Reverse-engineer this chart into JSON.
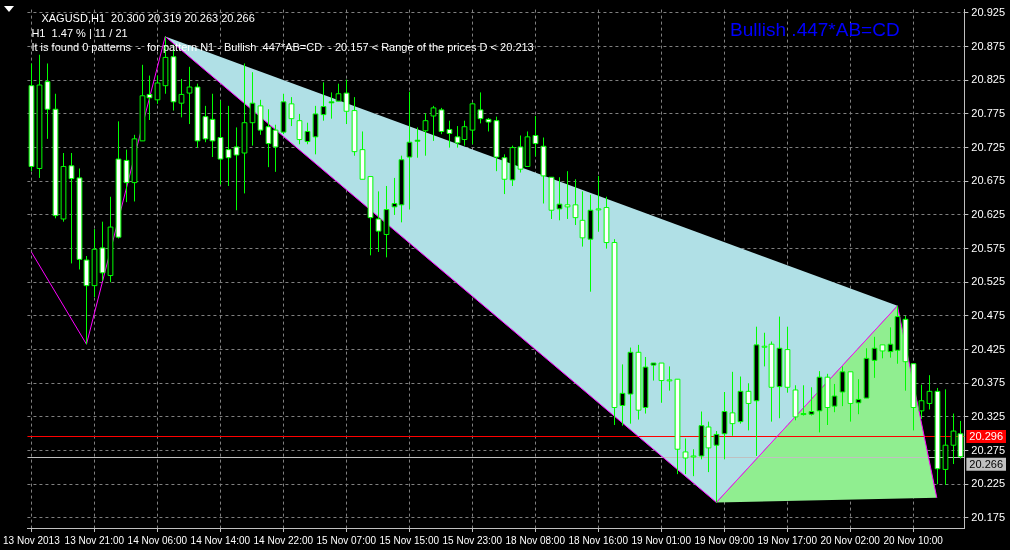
{
  "chart_data": {
    "type": "candlestick",
    "title": "XAGUSD,H1  20.300 20.319 20.263 20.266",
    "annotations": [
      "H1  1.47 % | 11 / 21",
      "It is found 0 patterns  -  for pattern N1 - Bullish .447*AB=CD  - 20.157 < Range of the prices D < 20.213",
      "Bullish .447*AB=CD"
    ],
    "categories": [
      "13 Nov 2013",
      null,
      null,
      null,
      null,
      null,
      null,
      null,
      "13 Nov 21:00",
      null,
      null,
      null,
      null,
      null,
      null,
      null,
      "14 Nov 06:00",
      null,
      null,
      null,
      null,
      null,
      null,
      null,
      "14 Nov 14:00",
      null,
      null,
      null,
      null,
      null,
      null,
      null,
      "14 Nov 22:00",
      null,
      null,
      null,
      null,
      null,
      null,
      null,
      "15 Nov 07:00",
      null,
      null,
      null,
      null,
      null,
      null,
      null,
      "15 Nov 15:00",
      null,
      null,
      null,
      null,
      null,
      null,
      null,
      "15 Nov 23:00",
      null,
      null,
      null,
      null,
      null,
      null,
      null,
      "18 Nov 08:00",
      null,
      null,
      null,
      null,
      null,
      null,
      null,
      "18 Nov 16:00",
      null,
      null,
      null,
      null,
      null,
      null,
      null,
      "19 Nov 01:00",
      null,
      null,
      null,
      null,
      null,
      null,
      null,
      "19 Nov 09:00",
      null,
      null,
      null,
      null,
      null,
      null,
      null,
      "19 Nov 17:00",
      null,
      null,
      null,
      null,
      null,
      null,
      null,
      "20 Nov 02:00",
      null,
      null,
      null,
      null,
      null,
      null,
      null,
      "20 Nov 10:00",
      null,
      null,
      null,
      null,
      null,
      null
    ],
    "ohlc": [
      [
        20.817,
        20.85,
        20.69,
        20.697
      ],
      [
        20.694,
        20.863,
        20.68,
        20.818
      ],
      [
        20.823,
        20.85,
        20.738,
        20.782
      ],
      [
        20.782,
        20.805,
        20.62,
        20.624
      ],
      [
        20.619,
        20.717,
        20.615,
        20.697
      ],
      [
        20.698,
        20.717,
        20.553,
        20.679
      ],
      [
        20.68,
        20.694,
        20.544,
        20.559
      ],
      [
        20.558,
        20.564,
        20.433,
        20.52
      ],
      [
        20.52,
        20.604,
        20.503,
        20.574
      ],
      [
        20.576,
        20.615,
        20.527,
        20.539
      ],
      [
        20.535,
        20.652,
        20.525,
        20.607
      ],
      [
        20.708,
        20.764,
        20.59,
        20.592
      ],
      [
        20.706,
        20.722,
        20.644,
        20.673
      ],
      [
        20.673,
        20.744,
        20.645,
        20.738
      ],
      [
        20.735,
        20.848,
        20.735,
        20.802
      ],
      [
        20.804,
        20.832,
        20.766,
        20.799
      ],
      [
        20.796,
        20.832,
        20.79,
        20.821
      ],
      [
        20.817,
        20.89,
        20.805,
        20.859
      ],
      [
        20.86,
        20.878,
        20.78,
        20.793
      ],
      [
        20.791,
        20.827,
        20.77,
        20.804
      ],
      [
        20.806,
        20.845,
        20.76,
        20.815
      ],
      [
        20.815,
        20.82,
        20.725,
        20.735
      ],
      [
        20.771,
        20.787,
        20.733,
        20.738
      ],
      [
        20.767,
        20.805,
        20.711,
        20.735
      ],
      [
        20.74,
        20.795,
        20.67,
        20.708
      ],
      [
        20.722,
        20.787,
        20.668,
        20.71
      ],
      [
        20.726,
        20.755,
        20.632,
        20.714
      ],
      [
        20.717,
        20.85,
        20.657,
        20.762
      ],
      [
        20.762,
        20.837,
        20.728,
        20.791
      ],
      [
        20.787,
        20.796,
        20.744,
        20.751
      ],
      [
        20.756,
        20.782,
        20.696,
        20.731
      ],
      [
        20.751,
        20.759,
        20.689,
        20.726
      ],
      [
        20.748,
        20.805,
        20.745,
        20.793
      ],
      [
        20.79,
        20.8,
        20.757,
        20.768
      ],
      [
        20.765,
        20.775,
        20.73,
        20.737
      ],
      [
        20.734,
        20.762,
        20.73,
        20.749
      ],
      [
        20.741,
        20.787,
        20.715,
        20.775
      ],
      [
        20.774,
        20.822,
        20.765,
        20.786
      ],
      [
        20.792,
        20.807,
        20.768,
        20.793
      ],
      [
        20.794,
        20.82,
        20.794,
        20.805
      ],
      [
        20.806,
        20.826,
        20.76,
        20.779
      ],
      [
        20.78,
        20.8,
        20.713,
        20.719
      ],
      [
        20.722,
        20.749,
        20.678,
        20.678
      ],
      [
        20.682,
        20.682,
        20.565,
        20.621
      ],
      [
        20.619,
        20.66,
        20.57,
        20.601
      ],
      [
        20.596,
        20.668,
        20.562,
        20.633
      ],
      [
        20.637,
        20.68,
        20.625,
        20.642
      ],
      [
        20.64,
        20.713,
        20.614,
        20.707
      ],
      [
        20.711,
        20.808,
        20.633,
        20.733
      ],
      [
        20.735,
        20.755,
        20.71,
        20.736
      ],
      [
        20.75,
        20.776,
        20.713,
        20.765
      ],
      [
        20.772,
        20.787,
        20.735,
        20.784
      ],
      [
        20.781,
        20.784,
        20.745,
        20.749
      ],
      [
        20.752,
        20.765,
        20.725,
        20.746
      ],
      [
        20.741,
        20.757,
        20.725,
        20.732
      ],
      [
        20.737,
        20.765,
        20.728,
        20.756
      ],
      [
        20.751,
        20.792,
        20.73,
        20.79
      ],
      [
        20.781,
        20.807,
        20.761,
        20.768
      ],
      [
        20.767,
        20.769,
        20.749,
        20.763
      ],
      [
        20.765,
        20.771,
        20.69,
        20.711
      ],
      [
        20.71,
        20.715,
        20.656,
        20.678
      ],
      [
        20.677,
        20.728,
        20.668,
        20.725
      ],
      [
        20.726,
        20.743,
        20.688,
        20.693
      ],
      [
        20.697,
        20.749,
        20.697,
        20.741
      ],
      [
        20.743,
        20.772,
        20.712,
        20.731
      ],
      [
        20.727,
        20.74,
        20.642,
        20.683
      ],
      [
        20.681,
        20.681,
        20.619,
        20.632
      ],
      [
        20.634,
        20.681,
        20.617,
        20.641
      ],
      [
        20.64,
        20.69,
        20.619,
        20.637
      ],
      [
        20.64,
        20.678,
        20.61,
        20.621
      ],
      [
        20.617,
        20.66,
        20.578,
        20.591
      ],
      [
        20.589,
        20.655,
        20.511,
        20.632
      ],
      [
        20.634,
        20.683,
        20.6,
        20.634
      ],
      [
        20.636,
        20.652,
        20.575,
        20.584
      ],
      [
        20.584,
        20.589,
        20.313,
        20.339
      ],
      [
        20.342,
        20.403,
        20.312,
        20.36
      ],
      [
        20.359,
        20.428,
        20.315,
        20.421
      ],
      [
        20.421,
        20.432,
        20.321,
        20.335
      ],
      [
        20.339,
        20.414,
        20.33,
        20.399
      ],
      [
        20.402,
        20.405,
        20.379,
        20.405
      ],
      [
        20.405,
        20.405,
        20.346,
        20.379
      ],
      [
        20.38,
        20.4,
        20.364,
        20.38
      ],
      [
        20.381,
        20.381,
        20.24,
        20.277
      ],
      [
        20.273,
        20.293,
        20.24,
        20.264
      ],
      [
        20.267,
        20.277,
        20.237,
        20.267
      ],
      [
        20.267,
        20.333,
        20.262,
        20.312
      ],
      [
        20.31,
        20.318,
        20.243,
        20.279
      ],
      [
        20.283,
        20.304,
        20.198,
        20.299
      ],
      [
        20.3,
        20.362,
        20.262,
        20.333
      ],
      [
        20.331,
        20.392,
        20.297,
        20.315
      ],
      [
        20.318,
        20.385,
        20.315,
        20.363
      ],
      [
        20.363,
        20.375,
        20.305,
        20.345
      ],
      [
        20.349,
        20.459,
        20.267,
        20.432
      ],
      [
        20.43,
        20.45,
        20.4,
        20.43
      ],
      [
        20.433,
        20.437,
        20.318,
        20.369
      ],
      [
        20.37,
        20.474,
        20.323,
        20.427
      ],
      [
        20.425,
        20.459,
        20.361,
        20.369
      ],
      [
        20.365,
        20.372,
        20.32,
        20.325
      ],
      [
        20.329,
        20.372,
        20.327,
        20.33
      ],
      [
        20.329,
        20.369,
        20.327,
        20.333
      ],
      [
        20.334,
        20.393,
        20.302,
        20.384
      ],
      [
        20.384,
        20.389,
        20.313,
        20.339
      ],
      [
        20.341,
        20.374,
        20.332,
        20.356
      ],
      [
        20.362,
        20.4,
        20.341,
        20.392
      ],
      [
        20.392,
        20.392,
        20.318,
        20.345
      ],
      [
        20.346,
        20.381,
        20.329,
        20.351
      ],
      [
        20.353,
        20.427,
        20.353,
        20.412
      ],
      [
        20.409,
        20.444,
        20.383,
        20.427
      ],
      [
        20.432,
        20.432,
        20.412,
        20.423
      ],
      [
        20.422,
        20.458,
        20.413,
        20.433
      ],
      [
        20.424,
        20.49,
        20.404,
        20.474
      ],
      [
        20.47,
        20.475,
        20.364,
        20.407
      ],
      [
        20.404,
        20.404,
        20.305,
        20.339
      ],
      [
        20.334,
        20.373,
        20.322,
        20.349
      ],
      [
        20.345,
        20.387,
        20.336,
        20.363
      ],
      [
        20.363,
        20.368,
        20.225,
        20.248
      ],
      [
        20.247,
        20.366,
        20.224,
        20.283
      ],
      [
        20.283,
        20.33,
        20.255,
        20.304
      ],
      [
        20.3,
        20.319,
        20.263,
        20.266
      ]
    ],
    "series": [
      {
        "type": "area",
        "color": "#b0e0e6",
        "values": [
          null,
          null,
          null,
          null,
          null,
          null,
          null,
          null,
          null,
          null,
          null,
          null,
          null,
          null,
          null,
          null,
          null,
          20.89,
          null,
          null,
          null,
          null,
          null,
          null,
          null,
          null,
          null,
          null,
          null,
          null,
          null,
          null,
          null,
          null,
          null,
          null,
          null,
          null,
          null,
          null,
          null,
          null,
          null,
          null,
          null,
          null,
          null,
          null,
          null,
          null,
          null,
          null,
          null,
          null,
          null,
          null,
          null,
          null,
          null,
          null,
          null,
          null,
          null,
          null,
          null,
          null,
          null,
          null,
          null,
          null,
          null,
          null,
          null,
          null,
          null,
          null,
          null,
          null,
          null,
          null,
          null,
          null,
          null,
          null,
          null,
          null,
          null,
          20.198,
          null,
          null,
          null,
          null,
          null,
          null,
          null,
          null,
          null,
          null,
          null,
          null,
          null,
          null,
          null,
          null,
          null,
          null,
          null,
          null,
          null,
          null,
          20.49,
          null,
          null,
          null,
          null,
          null,
          null,
          null,
          null
        ]
      },
      {
        "type": "area",
        "color": "#90ee90",
        "values": [
          null,
          null,
          null,
          null,
          null,
          null,
          null,
          null,
          null,
          null,
          null,
          null,
          null,
          null,
          null,
          null,
          null,
          null,
          null,
          null,
          null,
          null,
          null,
          null,
          null,
          null,
          null,
          null,
          null,
          null,
          null,
          null,
          null,
          null,
          null,
          null,
          null,
          null,
          null,
          null,
          null,
          null,
          null,
          null,
          null,
          null,
          null,
          null,
          null,
          null,
          null,
          null,
          null,
          null,
          null,
          null,
          null,
          null,
          null,
          null,
          null,
          null,
          null,
          null,
          null,
          null,
          null,
          null,
          null,
          null,
          null,
          null,
          null,
          null,
          null,
          null,
          null,
          null,
          null,
          null,
          null,
          null,
          null,
          null,
          null,
          null,
          null,
          20.198,
          null,
          null,
          null,
          null,
          null,
          null,
          null,
          null,
          null,
          null,
          null,
          null,
          null,
          null,
          null,
          null,
          null,
          null,
          null,
          null,
          null,
          null,
          20.49,
          null,
          null,
          null,
          null,
          20.205,
          null,
          null,
          null
        ]
      },
      {
        "type": "line",
        "color": "#ff00ff",
        "values": [
          20.57,
          null,
          null,
          null,
          null,
          null,
          null,
          20.433,
          null,
          null,
          null,
          null,
          null,
          null,
          null,
          null,
          null,
          20.89,
          null,
          null,
          null,
          null,
          null,
          null,
          null,
          null,
          null,
          null,
          null,
          null,
          null,
          null,
          null,
          null,
          null,
          null,
          null,
          null,
          null,
          null,
          null,
          null,
          null,
          null,
          null,
          null,
          null,
          null,
          null,
          null,
          null,
          null,
          null,
          null,
          null,
          null,
          null,
          null,
          null,
          null,
          null,
          null,
          null,
          null,
          null,
          null,
          null,
          null,
          null,
          null,
          null,
          null,
          null,
          null,
          null,
          null,
          null,
          null,
          null,
          null,
          null,
          null,
          null,
          null,
          null,
          null,
          null,
          20.198,
          null,
          null,
          null,
          null,
          null,
          null,
          null,
          null,
          null,
          null,
          null,
          null,
          null,
          null,
          null,
          null,
          null,
          null,
          null,
          null,
          null,
          null,
          20.49,
          null,
          null,
          null,
          null,
          20.205,
          null,
          null,
          null
        ]
      }
    ],
    "ylim": [
      20.16,
      20.93
    ],
    "yticks": [
      20.175,
      20.225,
      20.275,
      20.325,
      20.375,
      20.425,
      20.475,
      20.525,
      20.575,
      20.625,
      20.675,
      20.725,
      20.775,
      20.825,
      20.875,
      20.925
    ],
    "ref_lines": [
      {
        "axis": "y",
        "value": 20.296,
        "label": "20.296",
        "color": "#ff0000"
      },
      {
        "axis": "y",
        "value": 20.266,
        "label": "20.266",
        "color": "#c0c0c0"
      }
    ],
    "grid": true,
    "legend": false,
    "marker": "none"
  }
}
